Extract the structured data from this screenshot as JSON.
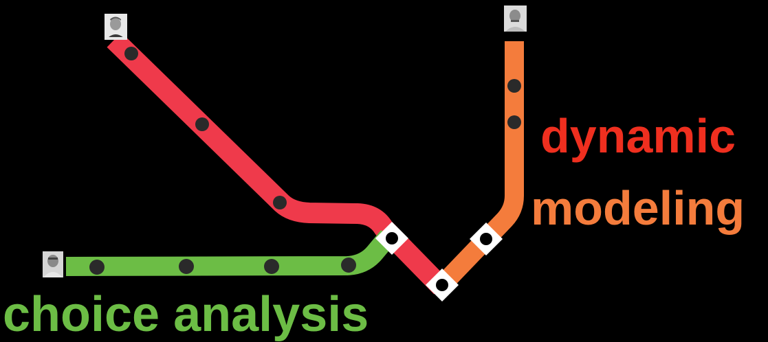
{
  "colors": {
    "background": "#000000",
    "red_line": "#ef3a4b",
    "green_line": "#6cbd45",
    "orange_line": "#f47c3c",
    "stop": "#2a2a2a",
    "transfer_fill": "#ffffff",
    "transfer_dot": "#000000",
    "label_dynamic": "#ef2f1f",
    "label_modeling": "#f47c3c",
    "label_choice": "#6cbd45"
  },
  "labels": {
    "dynamic": "dynamic",
    "modeling": "modeling",
    "choice": "choice analysis"
  },
  "lines": [
    {
      "name": "red-line",
      "color_key": "red_line",
      "icon": "person-photo-icon"
    },
    {
      "name": "green-line",
      "color_key": "green_line",
      "icon": "person-photo-icon"
    },
    {
      "name": "orange-line",
      "color_key": "orange_line",
      "icon": "person-photo-icon"
    }
  ]
}
